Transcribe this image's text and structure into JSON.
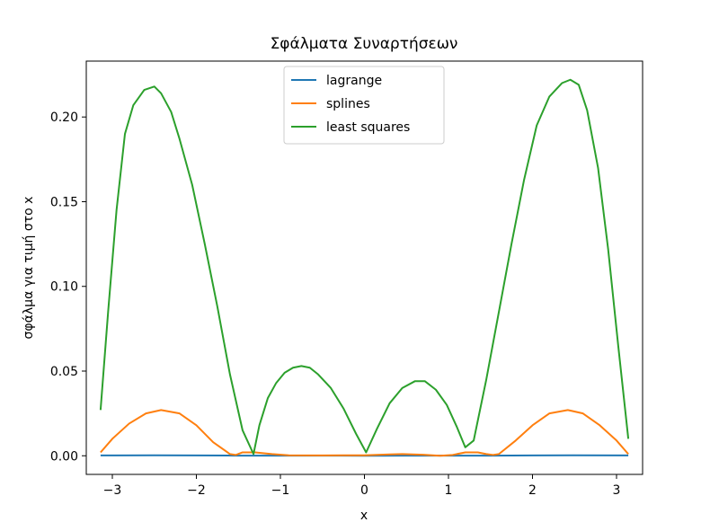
{
  "chart_data": {
    "type": "line",
    "title": "Σφάλματα Συναρτήσεων",
    "xlabel": "x",
    "ylabel": "σφάλμα για τιμή στο x",
    "xlim": [
      -3.31,
      3.31
    ],
    "ylim": [
      -0.011,
      0.233
    ],
    "xticks": [
      -3,
      -2,
      -1,
      0,
      1,
      2,
      3
    ],
    "xtick_labels": [
      "−3",
      "−2",
      "−1",
      "0",
      "1",
      "2",
      "3"
    ],
    "yticks": [
      0.0,
      0.05,
      0.1,
      0.15,
      0.2
    ],
    "ytick_labels": [
      "0.00",
      "0.05",
      "0.10",
      "0.15",
      "0.20"
    ],
    "grid": false,
    "legend_position": "upper-center",
    "series": [
      {
        "name": "lagrange",
        "color": "#1f77b4",
        "x": [
          -3.14,
          -2.5,
          -2.0,
          -1.5,
          -1.0,
          -0.5,
          0.0,
          0.5,
          1.0,
          1.5,
          2.0,
          2.5,
          3.14
        ],
        "y": [
          0.0002,
          0.0003,
          0.0002,
          0.0001,
          0.0001,
          0.0001,
          0.0,
          0.0001,
          0.0001,
          0.0001,
          0.0002,
          0.0003,
          0.0002
        ]
      },
      {
        "name": "splines",
        "color": "#ff7f0e",
        "x": [
          -3.14,
          -3.0,
          -2.8,
          -2.6,
          -2.42,
          -2.2,
          -2.0,
          -1.8,
          -1.6,
          -1.53,
          -1.45,
          -1.3,
          -1.1,
          -0.9,
          -0.5,
          0.0,
          0.3,
          0.45,
          0.7,
          0.9,
          1.05,
          1.2,
          1.35,
          1.45,
          1.53,
          1.6,
          1.8,
          2.0,
          2.2,
          2.42,
          2.6,
          2.8,
          3.0,
          3.14
        ],
        "y": [
          0.002,
          0.01,
          0.019,
          0.025,
          0.027,
          0.025,
          0.018,
          0.008,
          0.001,
          0.0005,
          0.002,
          0.002,
          0.001,
          0.0003,
          0.0002,
          0.0003,
          0.0008,
          0.001,
          0.0006,
          0.0,
          0.0005,
          0.002,
          0.002,
          0.001,
          0.0005,
          0.001,
          0.009,
          0.018,
          0.025,
          0.027,
          0.025,
          0.018,
          0.009,
          0.001
        ]
      },
      {
        "name": "least squares",
        "color": "#2ca02c",
        "x": [
          -3.14,
          -3.05,
          -2.95,
          -2.85,
          -2.75,
          -2.62,
          -2.5,
          -2.42,
          -2.3,
          -2.2,
          -2.05,
          -1.9,
          -1.75,
          -1.6,
          -1.45,
          -1.32,
          -1.25,
          -1.15,
          -1.05,
          -0.95,
          -0.85,
          -0.75,
          -0.65,
          -0.55,
          -0.4,
          -0.25,
          -0.1,
          0.02,
          0.15,
          0.3,
          0.45,
          0.6,
          0.72,
          0.85,
          0.98,
          1.1,
          1.2,
          1.3,
          1.45,
          1.6,
          1.75,
          1.9,
          2.05,
          2.2,
          2.35,
          2.45,
          2.55,
          2.65,
          2.78,
          2.9,
          3.02,
          3.14
        ],
        "y": [
          0.027,
          0.085,
          0.145,
          0.19,
          0.207,
          0.216,
          0.218,
          0.214,
          0.203,
          0.187,
          0.16,
          0.125,
          0.088,
          0.048,
          0.015,
          0.001,
          0.018,
          0.034,
          0.043,
          0.049,
          0.052,
          0.053,
          0.052,
          0.048,
          0.04,
          0.028,
          0.013,
          0.002,
          0.016,
          0.031,
          0.04,
          0.044,
          0.044,
          0.039,
          0.03,
          0.017,
          0.005,
          0.009,
          0.045,
          0.085,
          0.125,
          0.163,
          0.195,
          0.212,
          0.22,
          0.222,
          0.219,
          0.204,
          0.17,
          0.122,
          0.065,
          0.01
        ]
      }
    ]
  }
}
